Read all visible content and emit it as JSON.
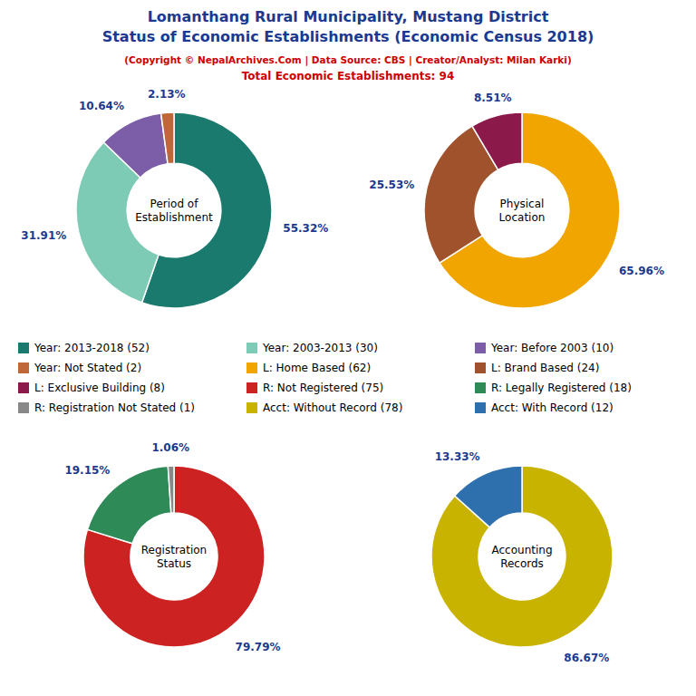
{
  "title": "Lomanthang Rural Municipality, Mustang District\nStatus of Economic Establishments (Economic Census 2018)",
  "subtitle": [
    "(Copyright © NepalArchives.Com | Data Source: CBS | Creator/Analyst: Milan Karki)",
    "Total Economic Establishments: 94"
  ],
  "chart_data": [
    {
      "type": "pie",
      "title": "Period of\nEstablishment",
      "categories": [
        "Year: 2013-2018 (52)",
        "Year: 2003-2013 (30)",
        "Year: Before 2003 (10)",
        "Year: Not Stated (2)"
      ],
      "values": [
        55.32,
        31.91,
        10.64,
        2.13
      ],
      "value_labels": [
        "55.32%",
        "31.91%",
        "10.64%",
        "2.13%"
      ],
      "colors": [
        "#1a7a6e",
        "#7ecbb5",
        "#7b5ea7",
        "#c0673a"
      ],
      "data_labels": true
    },
    {
      "type": "pie",
      "title": "Physical\nLocation",
      "categories": [
        "L: Home Based (62)",
        "L: Brand Based (24)",
        "L: Exclusive Building (8)"
      ],
      "values": [
        65.96,
        25.53,
        8.51
      ],
      "value_labels": [
        "65.96%",
        "25.53%",
        "8.51%"
      ],
      "colors": [
        "#f0a500",
        "#a0522d",
        "#8b1a4a"
      ],
      "data_labels": true
    },
    {
      "type": "pie",
      "title": "Registration\nStatus",
      "categories": [
        "R: Not Registered (75)",
        "R: Legally Registered (18)",
        "R: Registration Not Stated (1)"
      ],
      "values": [
        79.79,
        19.15,
        1.06
      ],
      "value_labels": [
        "79.79%",
        "19.15%",
        "1.06%"
      ],
      "colors": [
        "#cc2222",
        "#2e8b57",
        "#888888"
      ],
      "data_labels": true
    },
    {
      "type": "pie",
      "title": "Accounting\nRecords",
      "categories": [
        "Acct: Without Record (78)",
        "Acct: With Record (12)"
      ],
      "values": [
        86.67,
        13.33
      ],
      "value_labels": [
        "86.67%",
        "13.33%"
      ],
      "colors": [
        "#c8b400",
        "#2e6fad"
      ],
      "data_labels": true
    }
  ]
}
